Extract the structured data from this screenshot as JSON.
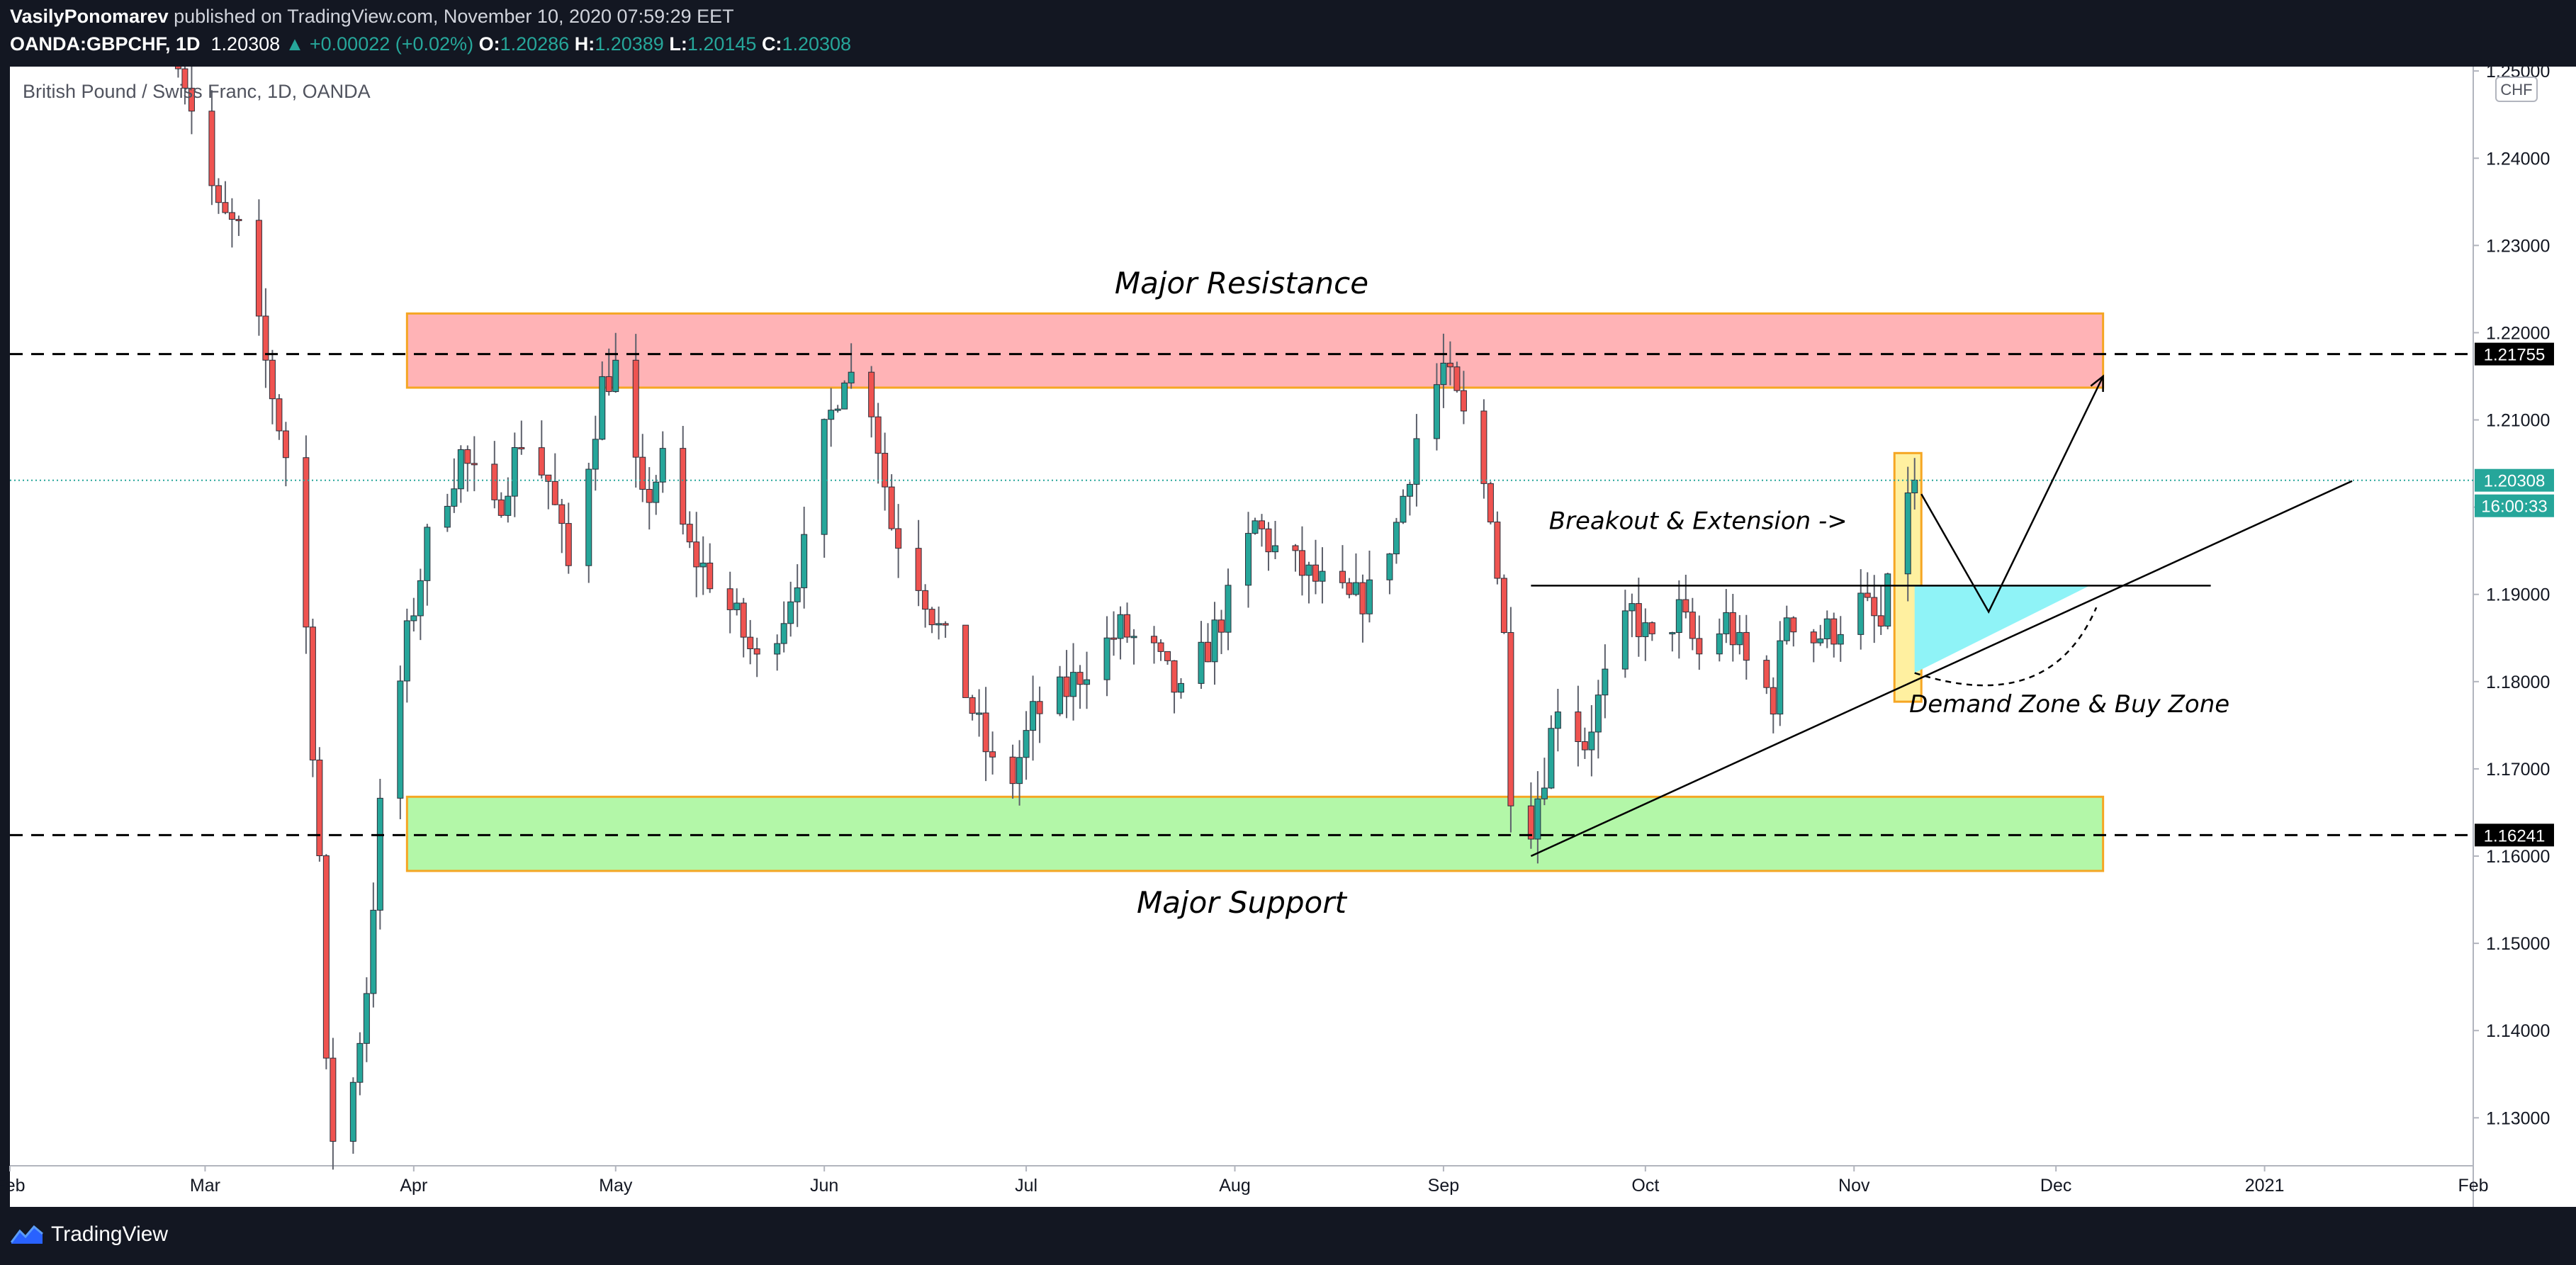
{
  "header": {
    "author": "VasilyPonomarev",
    "published_text": "published on TradingView.com, November 10, 2020 07:59:29 EET",
    "symbol": "OANDA:GBPCHF, 1D",
    "last": "1.20308",
    "change": "▲ +0.00022 (+0.02%)",
    "o_label": "O:",
    "o_value": "1.20286",
    "h_label": "H:",
    "h_value": "1.20389",
    "l_label": "L:",
    "l_value": "1.20145",
    "c_label": "C:",
    "c_value": "1.20308"
  },
  "footer": {
    "brand": "TradingView",
    "logo_icon": "tradingview-logo-icon"
  },
  "colors": {
    "up": "#26a69a",
    "down": "#ef5350",
    "background": "#131722",
    "chart_bg": "#ffffff"
  },
  "chart_data": {
    "type": "candlestick",
    "title": "British Pound / Swiss Franc, 1D, OANDA",
    "currency_badge": "CHF",
    "ylim": [
      1.1245,
      1.2505
    ],
    "y_ticks": [
      "1.13000",
      "1.14000",
      "1.15000",
      "1.16000",
      "1.17000",
      "1.18000",
      "1.19000",
      "1.20000",
      "1.21000",
      "1.22000",
      "1.23000",
      "1.24000",
      "1.25000"
    ],
    "x_start": "2020-02-01",
    "x_end": "2021-02-01",
    "x_ticks": [
      {
        "date": "2020-02-01",
        "label": "Feb"
      },
      {
        "date": "2020-03-01",
        "label": "Mar"
      },
      {
        "date": "2020-04-01",
        "label": "Apr"
      },
      {
        "date": "2020-05-01",
        "label": "May"
      },
      {
        "date": "2020-06-01",
        "label": "Jun"
      },
      {
        "date": "2020-07-01",
        "label": "Jul"
      },
      {
        "date": "2020-08-01",
        "label": "Aug"
      },
      {
        "date": "2020-09-01",
        "label": "Sep"
      },
      {
        "date": "2020-10-01",
        "label": "Oct"
      },
      {
        "date": "2020-11-01",
        "label": "Nov"
      },
      {
        "date": "2020-12-01",
        "label": "Dec"
      },
      {
        "date": "2021-01-01",
        "label": "2021"
      },
      {
        "date": "2021-02-01",
        "label": "Feb"
      }
    ],
    "price_path": [
      {
        "date": "2020-02-26",
        "price": 1.2525
      },
      {
        "date": "2020-03-03",
        "price": 1.2335
      },
      {
        "date": "2020-03-06",
        "price": 1.2315
      },
      {
        "date": "2020-03-09",
        "price": 1.22
      },
      {
        "date": "2020-03-13",
        "price": 1.206
      },
      {
        "date": "2020-03-16",
        "price": 1.186
      },
      {
        "date": "2020-03-18",
        "price": 1.16
      },
      {
        "date": "2020-03-19",
        "price": 1.135
      },
      {
        "date": "2020-03-20",
        "price": 1.128
      },
      {
        "date": "2020-03-23",
        "price": 1.134
      },
      {
        "date": "2020-03-25",
        "price": 1.145
      },
      {
        "date": "2020-03-27",
        "price": 1.165
      },
      {
        "date": "2020-03-31",
        "price": 1.185
      },
      {
        "date": "2020-04-03",
        "price": 1.196
      },
      {
        "date": "2020-04-08",
        "price": 1.206
      },
      {
        "date": "2020-04-13",
        "price": 1.199
      },
      {
        "date": "2020-04-17",
        "price": 1.208
      },
      {
        "date": "2020-04-21",
        "price": 1.203
      },
      {
        "date": "2020-04-24",
        "price": 1.193
      },
      {
        "date": "2020-04-29",
        "price": 1.214
      },
      {
        "date": "2020-05-01",
        "price": 1.216
      },
      {
        "date": "2020-05-05",
        "price": 1.2
      },
      {
        "date": "2020-05-08",
        "price": 1.205
      },
      {
        "date": "2020-05-12",
        "price": 1.195
      },
      {
        "date": "2020-05-15",
        "price": 1.192
      },
      {
        "date": "2020-05-19",
        "price": 1.187
      },
      {
        "date": "2020-05-22",
        "price": 1.182
      },
      {
        "date": "2020-05-26",
        "price": 1.188
      },
      {
        "date": "2020-05-29",
        "price": 1.195
      },
      {
        "date": "2020-06-01",
        "price": 1.208
      },
      {
        "date": "2020-06-04",
        "price": 1.216
      },
      {
        "date": "2020-06-08",
        "price": 1.212
      },
      {
        "date": "2020-06-11",
        "price": 1.198
      },
      {
        "date": "2020-06-15",
        "price": 1.192
      },
      {
        "date": "2020-06-18",
        "price": 1.186
      },
      {
        "date": "2020-06-22",
        "price": 1.179
      },
      {
        "date": "2020-06-26",
        "price": 1.17
      },
      {
        "date": "2020-06-29",
        "price": 1.169
      },
      {
        "date": "2020-07-02",
        "price": 1.176
      },
      {
        "date": "2020-07-07",
        "price": 1.179
      },
      {
        "date": "2020-07-10",
        "price": 1.182
      },
      {
        "date": "2020-07-15",
        "price": 1.186
      },
      {
        "date": "2020-07-20",
        "price": 1.183
      },
      {
        "date": "2020-07-24",
        "price": 1.178
      },
      {
        "date": "2020-07-28",
        "price": 1.184
      },
      {
        "date": "2020-07-31",
        "price": 1.189
      },
      {
        "date": "2020-08-04",
        "price": 1.198
      },
      {
        "date": "2020-08-07",
        "price": 1.195
      },
      {
        "date": "2020-08-12",
        "price": 1.192
      },
      {
        "date": "2020-08-18",
        "price": 1.189
      },
      {
        "date": "2020-08-21",
        "price": 1.19
      },
      {
        "date": "2020-08-25",
        "price": 1.198
      },
      {
        "date": "2020-08-28",
        "price": 1.208
      },
      {
        "date": "2020-09-01",
        "price": 1.216
      },
      {
        "date": "2020-09-04",
        "price": 1.21
      },
      {
        "date": "2020-09-08",
        "price": 1.2
      },
      {
        "date": "2020-09-10",
        "price": 1.185
      },
      {
        "date": "2020-09-11",
        "price": 1.168
      },
      {
        "date": "2020-09-14",
        "price": 1.164
      },
      {
        "date": "2020-09-16",
        "price": 1.17
      },
      {
        "date": "2020-09-18",
        "price": 1.178
      },
      {
        "date": "2020-09-22",
        "price": 1.173
      },
      {
        "date": "2020-09-25",
        "price": 1.18
      },
      {
        "date": "2020-09-29",
        "price": 1.188
      },
      {
        "date": "2020-10-02",
        "price": 1.184
      },
      {
        "date": "2020-10-06",
        "price": 1.188
      },
      {
        "date": "2020-10-09",
        "price": 1.183
      },
      {
        "date": "2020-10-13",
        "price": 1.187
      },
      {
        "date": "2020-10-16",
        "price": 1.182
      },
      {
        "date": "2020-10-20",
        "price": 1.178
      },
      {
        "date": "2020-10-22",
        "price": 1.188
      },
      {
        "date": "2020-10-26",
        "price": 1.185
      },
      {
        "date": "2020-10-29",
        "price": 1.186
      },
      {
        "date": "2020-11-02",
        "price": 1.189
      },
      {
        "date": "2020-11-05",
        "price": 1.186
      },
      {
        "date": "2020-11-09",
        "price": 1.2025
      },
      {
        "date": "2020-11-10",
        "price": 1.2031
      }
    ],
    "levels": [
      {
        "name": "resistance-level",
        "price": 1.21755,
        "label": "1.21755"
      },
      {
        "name": "support-level",
        "price": 1.16241,
        "label": "1.16241"
      }
    ],
    "last_price": {
      "price": 1.20308,
      "label": "1.20308",
      "countdown": "16:00:33"
    },
    "zones": [
      {
        "name": "major-resistance-zone",
        "from": "2020-03-31",
        "to": "2020-12-08",
        "low": 1.2137,
        "high": 1.2222,
        "fill": "#ffb3b6"
      },
      {
        "name": "major-support-zone",
        "from": "2020-03-31",
        "to": "2020-12-08",
        "low": 1.1583,
        "high": 1.1668,
        "fill": "#b3f7a8"
      },
      {
        "name": "breakout-candle-highlight",
        "from": "2020-11-07",
        "to": "2020-11-11",
        "low": 1.1777,
        "high": 1.2062,
        "fill": "#fff0a0"
      }
    ],
    "trendlines": [
      {
        "name": "ascending-trendline",
        "points": [
          {
            "date": "2020-09-14",
            "price": 1.16
          },
          {
            "date": "2021-01-14",
            "price": 1.203
          }
        ]
      },
      {
        "name": "range-top-line",
        "points": [
          {
            "date": "2020-09-14",
            "price": 1.191
          },
          {
            "date": "2020-12-24",
            "price": 1.191
          }
        ]
      }
    ],
    "demand_triangle": [
      {
        "date": "2020-11-10",
        "price": 1.191
      },
      {
        "date": "2020-12-06",
        "price": 1.191
      },
      {
        "date": "2020-11-10",
        "price": 1.181
      }
    ],
    "projection_path": [
      {
        "date": "2020-11-11",
        "price": 1.2015
      },
      {
        "date": "2020-11-21",
        "price": 1.188
      },
      {
        "date": "2020-12-08",
        "price": 1.215
      }
    ],
    "dashed_curve": [
      {
        "date": "2020-11-10",
        "price": 1.181
      },
      {
        "date": "2020-11-30",
        "price": 1.176
      },
      {
        "date": "2020-12-07",
        "price": 1.1885
      }
    ],
    "annotations": [
      {
        "name": "major-resistance-label",
        "text": "Major Resistance",
        "date": "2020-08-02",
        "price": 1.2245
      },
      {
        "name": "major-support-label",
        "text": "Major Support",
        "date": "2020-08-02",
        "price": 1.1535
      },
      {
        "name": "breakout-label",
        "text": "Breakout & Extension ->",
        "date": "2020-10-31",
        "price": 1.1975
      },
      {
        "name": "demand-zone-label",
        "text": "Demand Zone & Buy Zone",
        "date": "2020-12-03",
        "price": 1.1765
      }
    ]
  }
}
